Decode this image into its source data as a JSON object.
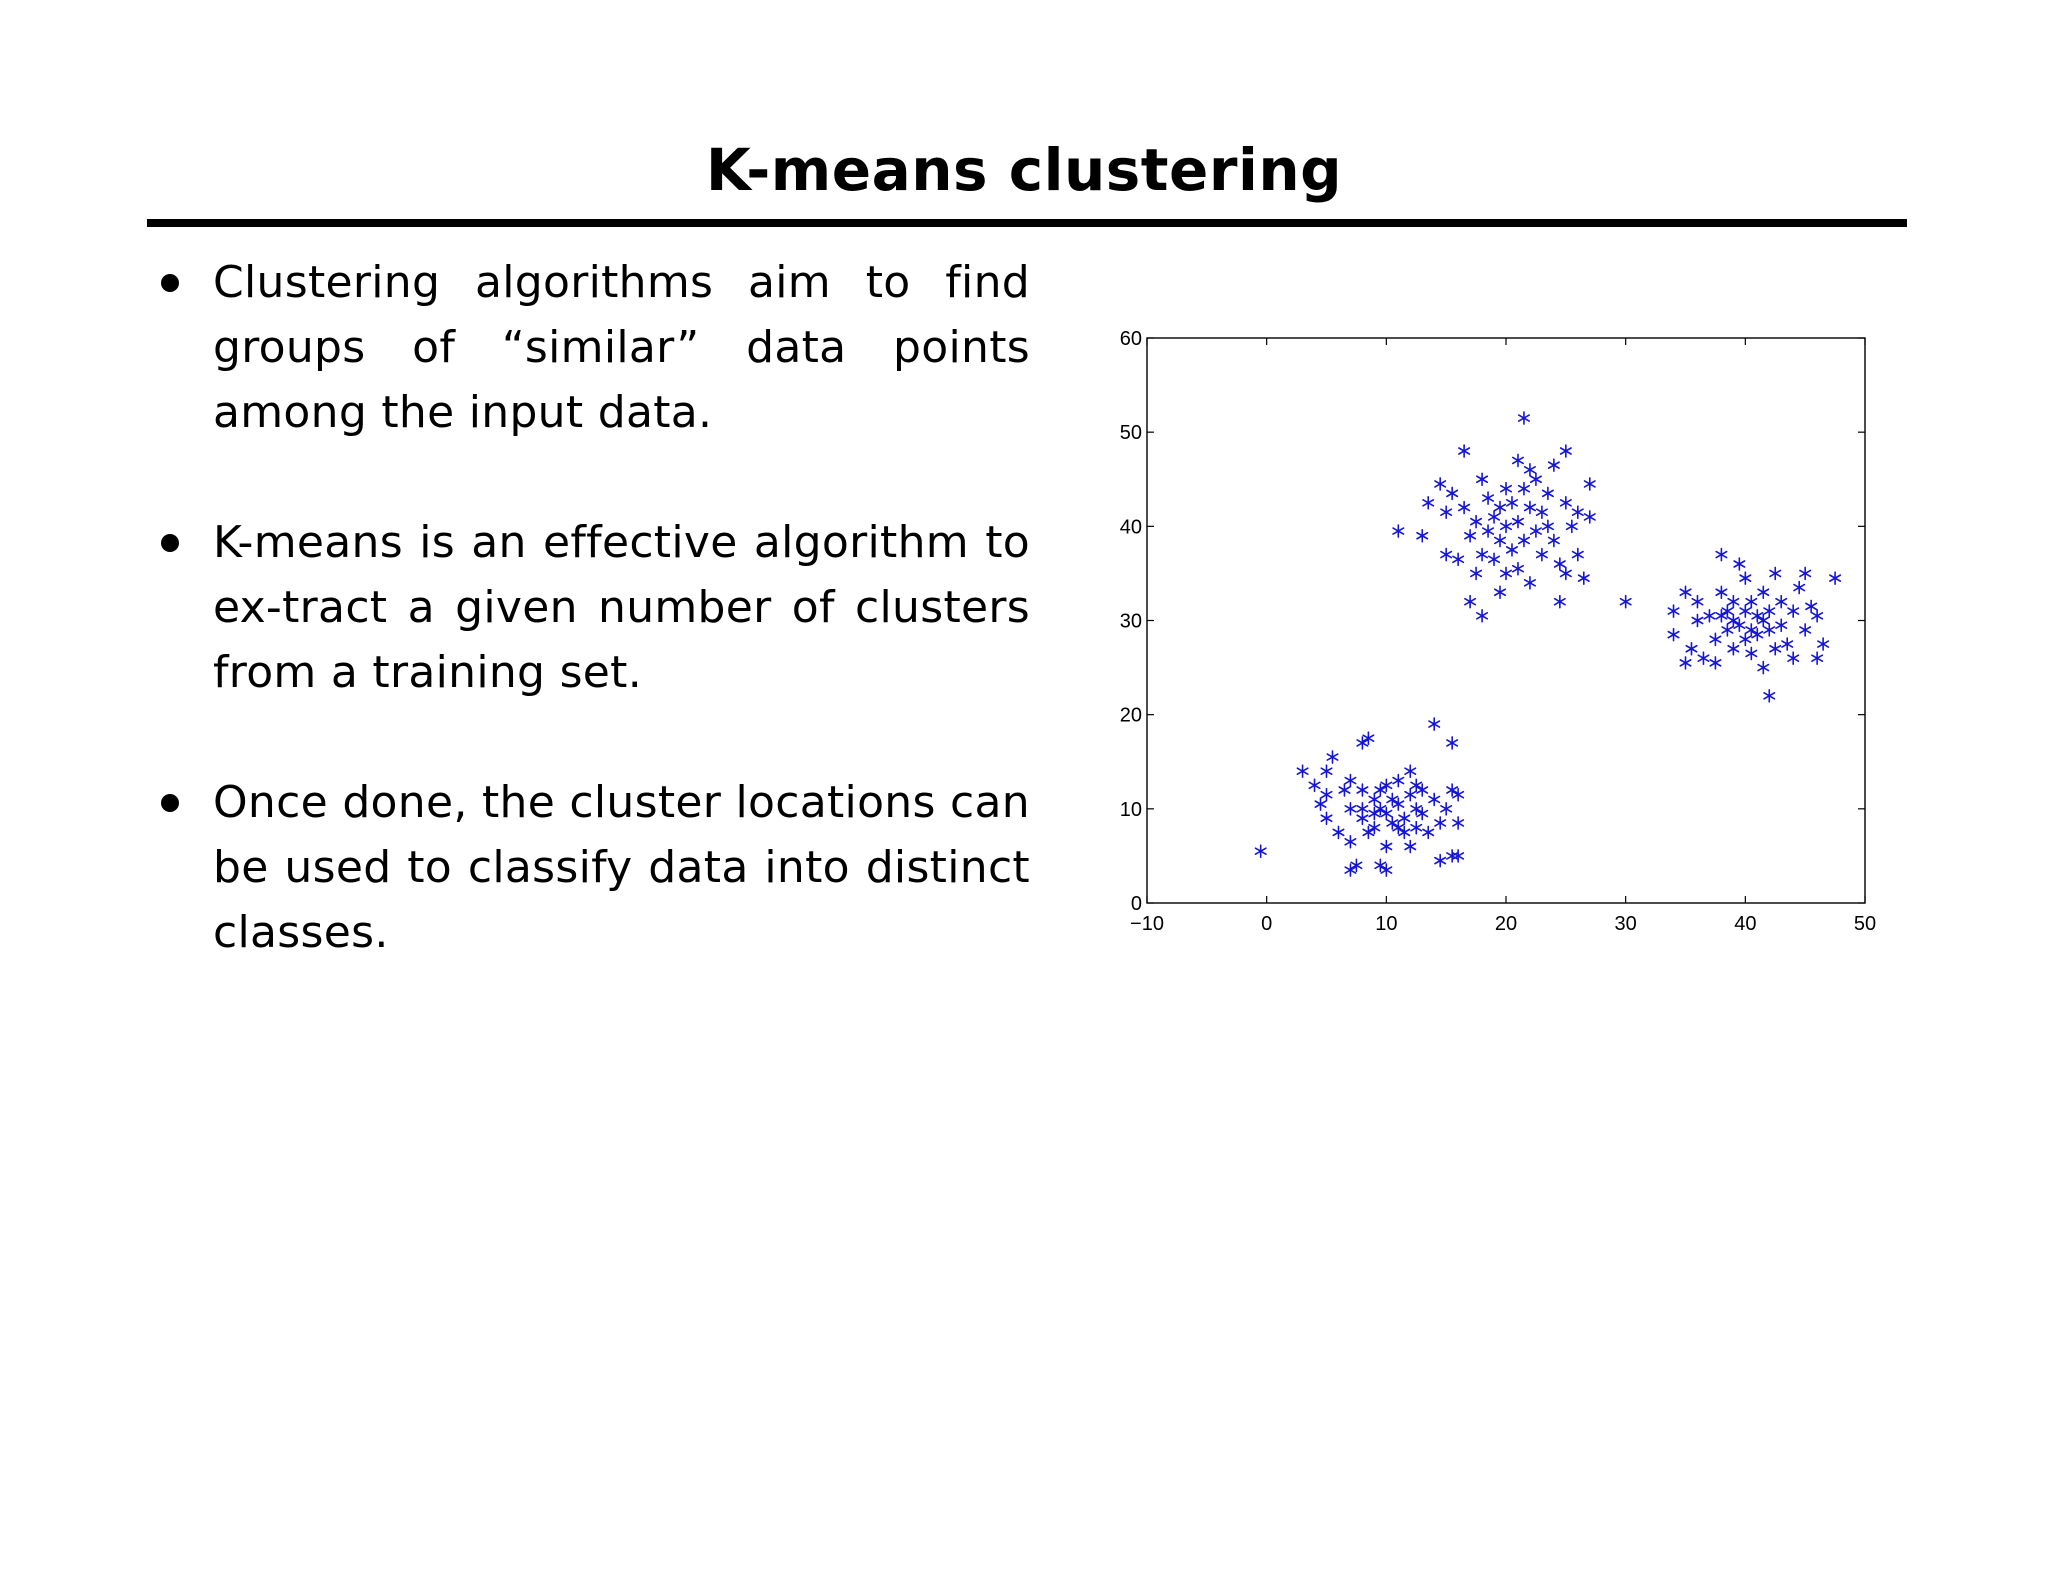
{
  "slide": {
    "title": "K-means clustering"
  },
  "bullets": [
    {
      "text": "Clustering algorithms aim to find groups of “similar” data points among the input data."
    },
    {
      "text": "K-means is an effective algorithm to ex-tract a given number of clusters from a training set."
    },
    {
      "text": "Once done, the cluster locations can be used to classify data into distinct classes."
    }
  ],
  "chart_data": {
    "type": "scatter",
    "marker": "asterisk",
    "color": "#1515d9",
    "xlim": [
      -10,
      50
    ],
    "ylim": [
      0,
      60
    ],
    "xticks": [
      "−10",
      "0",
      "10",
      "20",
      "30",
      "40",
      "50"
    ],
    "xtick_values": [
      -10,
      0,
      10,
      20,
      30,
      40,
      50
    ],
    "yticks": [
      "0",
      "10",
      "20",
      "30",
      "40",
      "50",
      "60"
    ],
    "ytick_values": [
      0,
      10,
      20,
      30,
      40,
      50,
      60
    ],
    "grid": false,
    "points": [
      [
        -0.5,
        5.5
      ],
      [
        3,
        14
      ],
      [
        4,
        12.5
      ],
      [
        4.5,
        10.5
      ],
      [
        5,
        14
      ],
      [
        5,
        11.5
      ],
      [
        5.5,
        15.5
      ],
      [
        5,
        9
      ],
      [
        6,
        7.5
      ],
      [
        6.5,
        12
      ],
      [
        7,
        13
      ],
      [
        7,
        10
      ],
      [
        7,
        6.5
      ],
      [
        7.5,
        4
      ],
      [
        7,
        3.5
      ],
      [
        8,
        17
      ],
      [
        8.5,
        17.5
      ],
      [
        8,
        12
      ],
      [
        8,
        9
      ],
      [
        8.5,
        7.5
      ],
      [
        9,
        11
      ],
      [
        9,
        8
      ],
      [
        9.5,
        12
      ],
      [
        9.5,
        10
      ],
      [
        10,
        9.5
      ],
      [
        10,
        12.5
      ],
      [
        10.5,
        11
      ],
      [
        10.5,
        8.5
      ],
      [
        10,
        6
      ],
      [
        9.5,
        4
      ],
      [
        10,
        3.5
      ],
      [
        11,
        13
      ],
      [
        11,
        10.5
      ],
      [
        11.5,
        9
      ],
      [
        11.5,
        7.5
      ],
      [
        12,
        14
      ],
      [
        12,
        11.5
      ],
      [
        12.5,
        10
      ],
      [
        12.5,
        8
      ],
      [
        12,
        6
      ],
      [
        13,
        12
      ],
      [
        13,
        9.5
      ],
      [
        13.5,
        7.5
      ],
      [
        14,
        11
      ],
      [
        14,
        19
      ],
      [
        14.5,
        8.5
      ],
      [
        14.5,
        4.5
      ],
      [
        15,
        10
      ],
      [
        15.5,
        17
      ],
      [
        15.5,
        12
      ],
      [
        15.5,
        5
      ],
      [
        16,
        11.5
      ],
      [
        16,
        8.5
      ],
      [
        16,
        5
      ],
      [
        8,
        10
      ],
      [
        9,
        9.5
      ],
      [
        11,
        8
      ],
      [
        12.5,
        12.5
      ],
      [
        11,
        39.5
      ],
      [
        13,
        39
      ],
      [
        13.5,
        42.5
      ],
      [
        14.5,
        44.5
      ],
      [
        15,
        41.5
      ],
      [
        15,
        37
      ],
      [
        15.5,
        43.5
      ],
      [
        16,
        36.5
      ],
      [
        16.5,
        48
      ],
      [
        16.5,
        42
      ],
      [
        17,
        39
      ],
      [
        17,
        32
      ],
      [
        17.5,
        35
      ],
      [
        17.5,
        40.5
      ],
      [
        18,
        37
      ],
      [
        18,
        30.5
      ],
      [
        18.5,
        43
      ],
      [
        18.5,
        39.5
      ],
      [
        19,
        36.5
      ],
      [
        19,
        41
      ],
      [
        19.5,
        33
      ],
      [
        19.5,
        38.5
      ],
      [
        20,
        44
      ],
      [
        20,
        40
      ],
      [
        20,
        35
      ],
      [
        20.5,
        42.5
      ],
      [
        20.5,
        37.5
      ],
      [
        21,
        47
      ],
      [
        21,
        40.5
      ],
      [
        21,
        35.5
      ],
      [
        21.5,
        51.5
      ],
      [
        21.5,
        44
      ],
      [
        21.5,
        38.5
      ],
      [
        22,
        42
      ],
      [
        22,
        34
      ],
      [
        22.5,
        45
      ],
      [
        22.5,
        39.5
      ],
      [
        23,
        41.5
      ],
      [
        23,
        37
      ],
      [
        23.5,
        43.5
      ],
      [
        23.5,
        40
      ],
      [
        24,
        46.5
      ],
      [
        24,
        38.5
      ],
      [
        24.5,
        36
      ],
      [
        24.5,
        32
      ],
      [
        25,
        48
      ],
      [
        25,
        42.5
      ],
      [
        25,
        35
      ],
      [
        25.5,
        40
      ],
      [
        26,
        41.5
      ],
      [
        26,
        37
      ],
      [
        26.5,
        34.5
      ],
      [
        27,
        44.5
      ],
      [
        27,
        41
      ],
      [
        18,
        45
      ],
      [
        19.5,
        42
      ],
      [
        22,
        46
      ],
      [
        30,
        32
      ],
      [
        34,
        31
      ],
      [
        34,
        28.5
      ],
      [
        35,
        33
      ],
      [
        35,
        25.5
      ],
      [
        35.5,
        27
      ],
      [
        36,
        30
      ],
      [
        36,
        32
      ],
      [
        36.5,
        26
      ],
      [
        37,
        30.5
      ],
      [
        37.5,
        28
      ],
      [
        37.5,
        25.5
      ],
      [
        38,
        37
      ],
      [
        38,
        33
      ],
      [
        38.5,
        31
      ],
      [
        38.5,
        29
      ],
      [
        39,
        27
      ],
      [
        39,
        32
      ],
      [
        39.5,
        36
      ],
      [
        39.5,
        29.5
      ],
      [
        40,
        34.5
      ],
      [
        40,
        31
      ],
      [
        40,
        28
      ],
      [
        40.5,
        32
      ],
      [
        40.5,
        26.5
      ],
      [
        41,
        30.5
      ],
      [
        41,
        28.5
      ],
      [
        41.5,
        33
      ],
      [
        41.5,
        25
      ],
      [
        42,
        31
      ],
      [
        42,
        29
      ],
      [
        42,
        22
      ],
      [
        42.5,
        35
      ],
      [
        42.5,
        27
      ],
      [
        43,
        32
      ],
      [
        43,
        29.5
      ],
      [
        43.5,
        27.5
      ],
      [
        44,
        31
      ],
      [
        44,
        26
      ],
      [
        44.5,
        33.5
      ],
      [
        45,
        35
      ],
      [
        45,
        29
      ],
      [
        45.5,
        31.5
      ],
      [
        46,
        30.5
      ],
      [
        46,
        26
      ],
      [
        46.5,
        27.5
      ],
      [
        47.5,
        34.5
      ],
      [
        39,
        30
      ],
      [
        40.5,
        29
      ],
      [
        41.5,
        30
      ],
      [
        38,
        30.5
      ]
    ]
  }
}
